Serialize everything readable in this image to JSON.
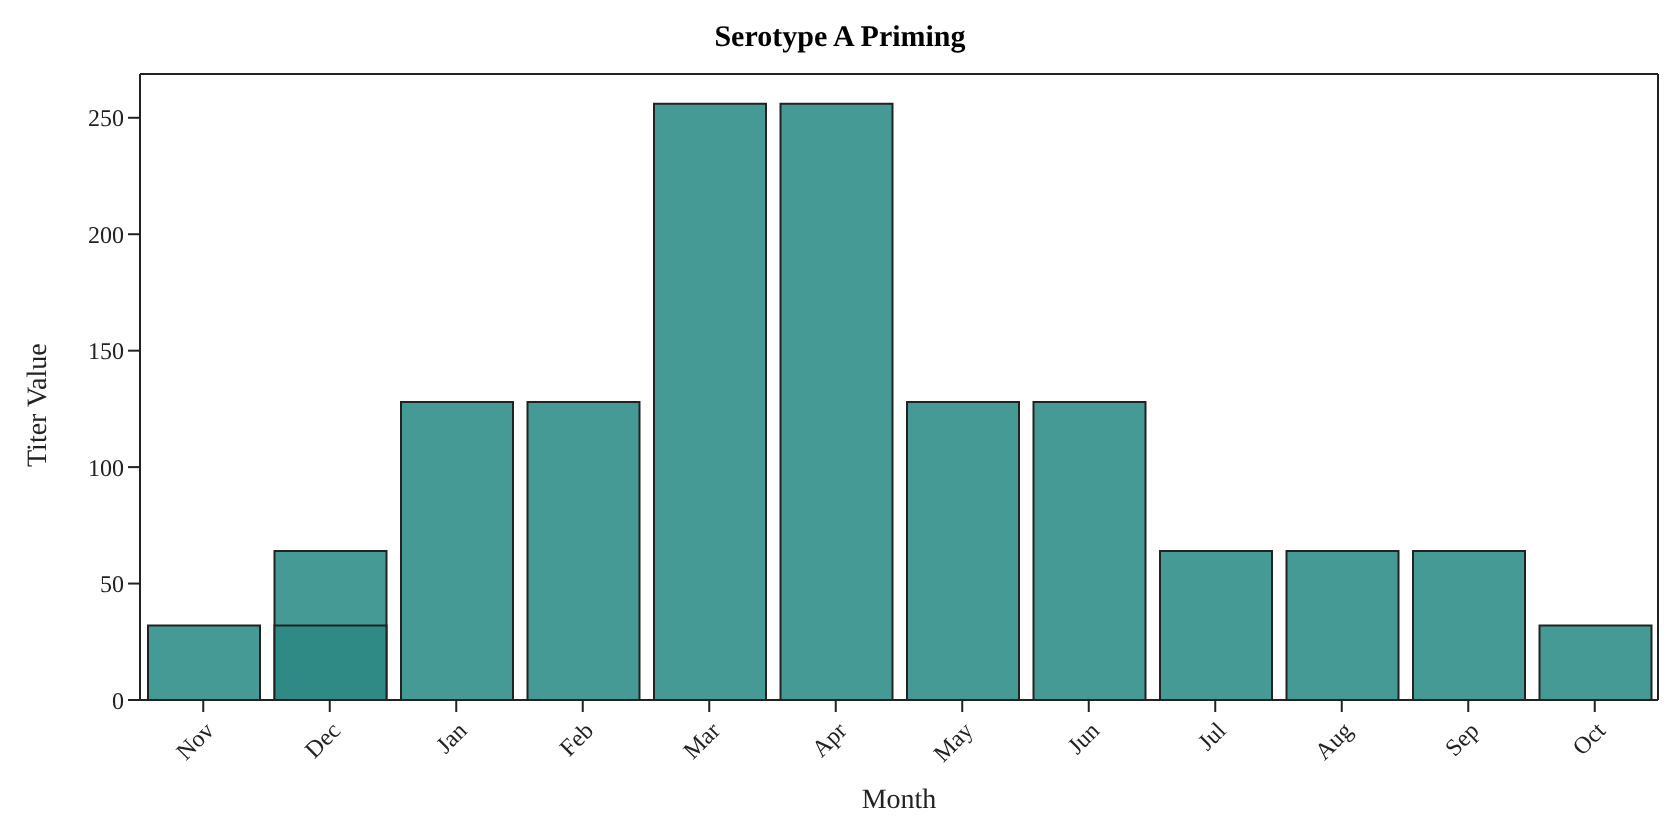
{
  "chart_data": {
    "type": "bar",
    "title": "Serotype A Priming",
    "xlabel": "Month",
    "ylabel": "Titer Value",
    "categories": [
      "Nov",
      "Dec",
      "Jan",
      "Feb",
      "Mar",
      "Apr",
      "May",
      "Jun",
      "Jul",
      "Aug",
      "Sep",
      "Oct"
    ],
    "series": [
      {
        "color": "#469a96",
        "values": [
          32,
          64,
          128,
          128,
          256,
          256,
          128,
          128,
          64,
          64,
          64,
          32
        ]
      },
      {
        "color": "#2f8a86",
        "values": [
          null,
          32,
          null,
          null,
          null,
          null,
          null,
          null,
          null,
          null,
          null,
          null
        ]
      }
    ],
    "ylim": [
      0,
      268.8
    ],
    "yticks": [
      0,
      50,
      100,
      150,
      200,
      250
    ],
    "grid": false,
    "legend": false
  }
}
